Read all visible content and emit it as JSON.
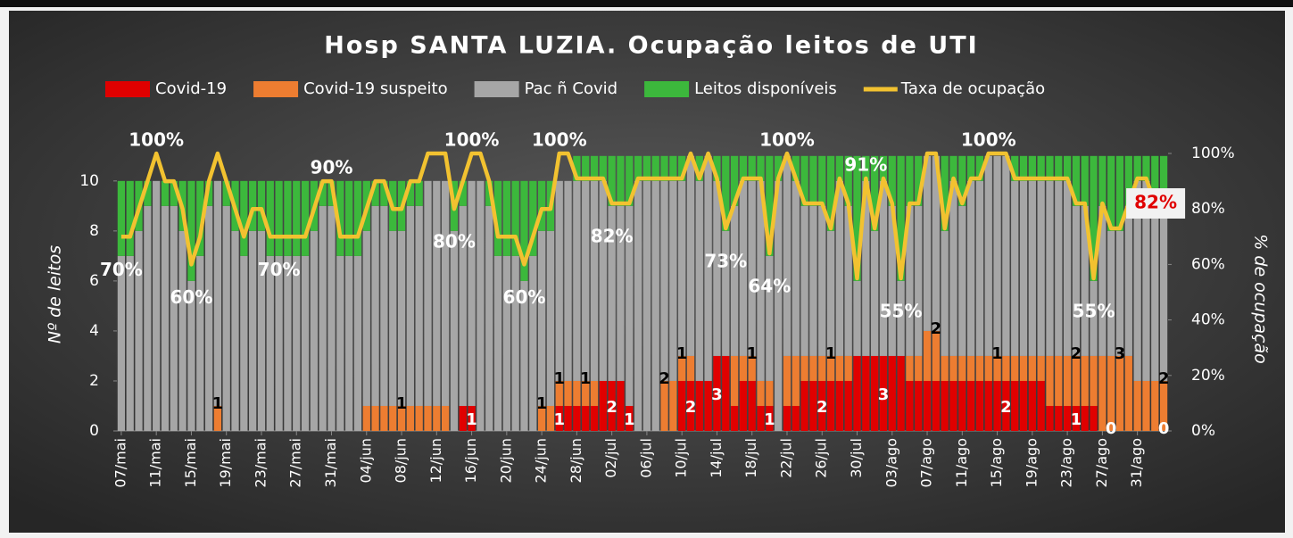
{
  "chart_data": {
    "type": "bar",
    "stacked": true,
    "title": "Hosp SANTA LUZIA. Ocupação leitos de UTI",
    "y_label": "Nº de leitos",
    "y2_label": "% de ocupação",
    "ylim": [
      0,
      11.1
    ],
    "yticks": [
      0,
      2,
      4,
      6,
      8,
      10
    ],
    "y2lim": [
      0,
      100
    ],
    "y2ticks": [
      {
        "value": 0,
        "label": "0%"
      },
      {
        "value": 20,
        "label": "20%"
      },
      {
        "value": 40,
        "label": "40%"
      },
      {
        "value": 60,
        "label": "60%"
      },
      {
        "value": 80,
        "label": "80%"
      },
      {
        "value": 100,
        "label": "100%"
      }
    ],
    "legend": "top",
    "grid": false,
    "categories": [
      "07/mai",
      null,
      null,
      null,
      "11/mai",
      null,
      null,
      null,
      "15/mai",
      null,
      null,
      null,
      "19/mai",
      null,
      null,
      null,
      "23/mai",
      null,
      null,
      null,
      "27/mai",
      null,
      null,
      null,
      "31/mai",
      null,
      null,
      null,
      "04/jun",
      null,
      null,
      null,
      "08/jun",
      null,
      null,
      null,
      "12/jun",
      null,
      null,
      null,
      "16/jun",
      null,
      null,
      null,
      "20/jun",
      null,
      null,
      null,
      "24/jun",
      null,
      null,
      null,
      "28/jun",
      null,
      null,
      null,
      "02/jul",
      null,
      null,
      null,
      "06/jul",
      null,
      null,
      null,
      "10/jul",
      null,
      null,
      null,
      "14/jul",
      null,
      null,
      null,
      "18/jul",
      null,
      null,
      null,
      "22/jul",
      null,
      null,
      null,
      "26/jul",
      null,
      null,
      null,
      "30/jul",
      null,
      null,
      null,
      "03/ago",
      null,
      null,
      null,
      "07/ago",
      null,
      null,
      null,
      "11/ago",
      null,
      null,
      null,
      "15/ago",
      null,
      null,
      null,
      "19/ago",
      null,
      null,
      null,
      "23/ago",
      null,
      null,
      null,
      "27/ago",
      null,
      null,
      null,
      "31/ago",
      null,
      null,
      null
    ],
    "series": [
      {
        "name": "Covid-19",
        "color": "#e00000",
        "label_color": "#ffffff",
        "values": [
          0,
          0,
          0,
          0,
          0,
          0,
          0,
          0,
          0,
          0,
          0,
          0,
          0,
          0,
          0,
          0,
          0,
          0,
          0,
          0,
          0,
          0,
          0,
          0,
          0,
          0,
          0,
          0,
          0,
          0,
          0,
          0,
          0,
          0,
          0,
          0,
          0,
          0,
          0,
          1,
          1,
          0,
          0,
          0,
          0,
          0,
          0,
          0,
          0,
          0,
          1,
          1,
          1,
          1,
          1,
          2,
          2,
          2,
          1,
          0,
          0,
          0,
          0,
          0,
          2,
          2,
          2,
          2,
          3,
          3,
          1,
          2,
          2,
          1,
          1,
          0,
          1,
          1,
          2,
          2,
          2,
          2,
          2,
          2,
          3,
          3,
          3,
          3,
          3,
          3,
          2,
          2,
          2,
          2,
          2,
          2,
          2,
          2,
          2,
          2,
          2,
          2,
          2,
          2,
          2,
          2,
          1,
          1,
          1,
          1,
          1,
          1,
          0,
          0,
          0,
          0,
          0,
          0,
          0,
          0
        ],
        "value_labels": [
          null,
          null,
          null,
          null,
          null,
          null,
          null,
          null,
          null,
          null,
          null,
          null,
          null,
          null,
          null,
          null,
          null,
          null,
          null,
          null,
          null,
          null,
          null,
          null,
          null,
          null,
          null,
          null,
          null,
          null,
          null,
          null,
          null,
          null,
          null,
          null,
          null,
          null,
          null,
          null,
          "1",
          null,
          null,
          null,
          null,
          null,
          null,
          null,
          null,
          null,
          "1",
          null,
          null,
          null,
          null,
          null,
          "2",
          null,
          "1",
          null,
          null,
          null,
          null,
          null,
          null,
          "2",
          null,
          null,
          "3",
          null,
          null,
          null,
          null,
          null,
          "1",
          null,
          null,
          null,
          null,
          null,
          "2",
          null,
          null,
          null,
          null,
          null,
          null,
          "3",
          null,
          null,
          null,
          null,
          null,
          null,
          null,
          null,
          null,
          null,
          null,
          null,
          null,
          "2",
          null,
          null,
          null,
          null,
          null,
          null,
          null,
          "1",
          null,
          null,
          null,
          "0",
          null,
          null,
          null,
          null,
          null,
          "0"
        ]
      },
      {
        "name": "Covid-19 suspeito",
        "color": "#ed7d31",
        "label_color": "#000000",
        "values": [
          0,
          0,
          0,
          0,
          0,
          0,
          0,
          0,
          0,
          0,
          0,
          1,
          0,
          0,
          0,
          0,
          0,
          0,
          0,
          0,
          0,
          0,
          0,
          0,
          0,
          0,
          0,
          0,
          1,
          1,
          1,
          1,
          1,
          1,
          1,
          1,
          1,
          1,
          0,
          0,
          0,
          0,
          0,
          0,
          0,
          0,
          0,
          0,
          1,
          1,
          1,
          1,
          1,
          1,
          1,
          0,
          0,
          0,
          0,
          0,
          0,
          0,
          2,
          2,
          1,
          1,
          0,
          0,
          0,
          0,
          2,
          1,
          1,
          1,
          1,
          0,
          2,
          2,
          1,
          1,
          1,
          1,
          1,
          1,
          0,
          0,
          0,
          0,
          0,
          0,
          1,
          1,
          2,
          2,
          1,
          1,
          1,
          1,
          1,
          1,
          1,
          1,
          1,
          1,
          1,
          1,
          2,
          2,
          2,
          2,
          2,
          2,
          3,
          3,
          3,
          3,
          2,
          2,
          2,
          2
        ],
        "value_labels": [
          null,
          null,
          null,
          null,
          null,
          null,
          null,
          null,
          null,
          null,
          null,
          "1",
          null,
          null,
          null,
          null,
          null,
          null,
          null,
          null,
          null,
          null,
          null,
          null,
          null,
          null,
          null,
          null,
          null,
          null,
          null,
          null,
          "1",
          null,
          null,
          null,
          null,
          null,
          null,
          null,
          null,
          null,
          null,
          null,
          null,
          null,
          null,
          null,
          "1",
          null,
          "1",
          null,
          null,
          "1",
          null,
          null,
          null,
          null,
          null,
          null,
          null,
          null,
          "2",
          null,
          "1",
          null,
          null,
          null,
          null,
          null,
          null,
          null,
          "1",
          null,
          null,
          null,
          null,
          null,
          null,
          null,
          null,
          "1",
          null,
          null,
          null,
          null,
          null,
          null,
          null,
          null,
          null,
          null,
          null,
          "2",
          null,
          null,
          null,
          null,
          null,
          null,
          "1",
          null,
          null,
          null,
          null,
          null,
          null,
          null,
          null,
          "2",
          null,
          null,
          null,
          null,
          "3",
          null,
          null,
          null,
          null,
          "2"
        ]
      },
      {
        "name": "Pac ñ Covid",
        "color": "#a6a6a6",
        "values": [
          7,
          7,
          8,
          9,
          10,
          9,
          9,
          8,
          6,
          7,
          9,
          9,
          9,
          8,
          7,
          8,
          8,
          7,
          7,
          7,
          7,
          7,
          8,
          9,
          9,
          7,
          7,
          7,
          7,
          8,
          8,
          7,
          7,
          8,
          8,
          9,
          9,
          9,
          8,
          8,
          9,
          10,
          9,
          7,
          7,
          7,
          6,
          7,
          7,
          7,
          8,
          8,
          8,
          8,
          8,
          8,
          7,
          7,
          8,
          10,
          10,
          10,
          8,
          8,
          7,
          8,
          8,
          9,
          7,
          5,
          6,
          7,
          7,
          8,
          5,
          10,
          8,
          7,
          6,
          6,
          6,
          5,
          7,
          6,
          3,
          7,
          5,
          7,
          6,
          3,
          6,
          6,
          7,
          7,
          5,
          7,
          6,
          7,
          7,
          8,
          8,
          8,
          7,
          7,
          7,
          7,
          7,
          7,
          7,
          6,
          6,
          3,
          6,
          5,
          5,
          6,
          8,
          8,
          7,
          7
        ]
      },
      {
        "name": "Leitos disponíveis",
        "color": "#3cb83c",
        "values": [
          3,
          3,
          2,
          1,
          0,
          1,
          1,
          2,
          4,
          3,
          1,
          0,
          1,
          2,
          3,
          2,
          2,
          3,
          3,
          3,
          3,
          3,
          2,
          1,
          1,
          3,
          3,
          3,
          2,
          1,
          1,
          2,
          2,
          1,
          1,
          0,
          0,
          0,
          2,
          1,
          0,
          0,
          1,
          3,
          3,
          3,
          4,
          3,
          2,
          2,
          0,
          0,
          1,
          1,
          1,
          1,
          2,
          2,
          2,
          1,
          1,
          1,
          1,
          1,
          1,
          0,
          1,
          0,
          1,
          3,
          2,
          1,
          1,
          1,
          4,
          1,
          0,
          1,
          2,
          2,
          2,
          3,
          1,
          2,
          5,
          1,
          3,
          1,
          2,
          5,
          2,
          2,
          0,
          0,
          3,
          1,
          2,
          1,
          1,
          0,
          0,
          0,
          1,
          1,
          1,
          1,
          1,
          1,
          1,
          2,
          2,
          5,
          2,
          3,
          3,
          2,
          1,
          1,
          2,
          2
        ]
      },
      {
        "name": "Taxa de ocupação",
        "color": "#f2c230",
        "type": "line",
        "axis": "y2",
        "values": [
          70,
          70,
          80,
          90,
          100,
          90,
          90,
          80,
          60,
          70,
          90,
          100,
          90,
          80,
          70,
          80,
          80,
          70,
          70,
          70,
          70,
          70,
          80,
          90,
          90,
          70,
          70,
          70,
          80,
          90,
          90,
          80,
          80,
          90,
          90,
          100,
          100,
          100,
          80,
          90,
          100,
          100,
          90,
          70,
          70,
          70,
          60,
          70,
          80,
          80,
          100,
          100,
          91,
          91,
          91,
          91,
          82,
          82,
          82,
          91,
          91,
          91,
          91,
          91,
          91,
          100,
          91,
          100,
          91,
          73,
          82,
          91,
          91,
          91,
          64,
          91,
          100,
          91,
          82,
          82,
          82,
          73,
          91,
          82,
          55,
          91,
          73,
          91,
          82,
          55,
          82,
          82,
          100,
          100,
          73,
          91,
          82,
          91,
          91,
          100,
          100,
          100,
          91,
          91,
          91,
          91,
          91,
          91,
          91,
          82,
          82,
          55,
          82,
          73,
          73,
          82,
          91,
          91,
          82,
          82
        ],
        "value_labels": [
          "70%",
          null,
          null,
          null,
          "100%",
          null,
          null,
          null,
          "60%",
          null,
          null,
          null,
          null,
          null,
          null,
          null,
          null,
          null,
          "70%",
          null,
          null,
          null,
          null,
          null,
          "90%",
          null,
          null,
          null,
          null,
          null,
          null,
          null,
          null,
          null,
          null,
          null,
          null,
          null,
          "80%",
          null,
          "100%",
          null,
          null,
          null,
          null,
          null,
          "60%",
          null,
          null,
          null,
          "100%",
          null,
          null,
          null,
          null,
          null,
          "82%",
          null,
          null,
          null,
          null,
          null,
          null,
          null,
          null,
          null,
          null,
          null,
          null,
          "73%",
          null,
          null,
          null,
          null,
          "64%",
          null,
          "100%",
          null,
          null,
          null,
          null,
          null,
          null,
          null,
          null,
          "91%",
          null,
          null,
          null,
          "55%",
          null,
          null,
          null,
          null,
          null,
          null,
          null,
          null,
          null,
          "100%",
          null,
          null,
          null,
          null,
          null,
          null,
          null,
          null,
          null,
          null,
          null,
          "55%",
          null,
          null,
          null,
          null,
          null,
          null,
          null,
          "82%"
        ]
      }
    ]
  }
}
